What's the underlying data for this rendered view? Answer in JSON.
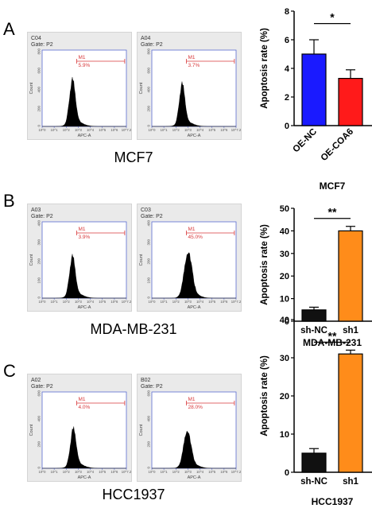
{
  "panels": [
    {
      "letter": "A",
      "cell_line": "MCF7",
      "histograms": [
        {
          "sample": "C04",
          "gate": "Gate: P2",
          "marker": "M1",
          "percent": "5.9%",
          "peak": 0.36,
          "spread": 0.035,
          "height": 0.62
        },
        {
          "sample": "A04",
          "gate": "Gate: P2",
          "marker": "M1",
          "percent": "3.7%",
          "peak": 0.36,
          "spread": 0.033,
          "height": 0.56
        }
      ],
      "hist_axis": {
        "ylabel": "Count",
        "xlabel": "APC-A",
        "yticks": [
          "0",
          "200",
          "400",
          "600",
          "800"
        ],
        "xticks": [
          "10^0",
          "10^1",
          "10^2",
          "10^3",
          "10^4",
          "10^5",
          "10^6",
          "10^7.2"
        ]
      }
    },
    {
      "letter": "B",
      "cell_line": "MDA-MB-231",
      "histograms": [
        {
          "sample": "A03",
          "gate": "Gate: P2",
          "marker": "M1",
          "percent": "3.9%",
          "peak": 0.36,
          "spread": 0.034,
          "height": 0.55
        },
        {
          "sample": "C03",
          "gate": "Gate: P2",
          "marker": "M1",
          "percent": "45.0%",
          "peak": 0.43,
          "spread": 0.045,
          "height": 0.62
        }
      ],
      "hist_axis": {
        "ylabel": "Count",
        "xlabel": "APC-A",
        "yticks": [
          "0",
          "100",
          "200",
          "300",
          "400"
        ],
        "xticks": [
          "10^0",
          "10^1",
          "10^2",
          "10^3",
          "10^4",
          "10^5",
          "10^6",
          "10^7.2"
        ]
      }
    },
    {
      "letter": "C",
      "cell_line": "HCC1937",
      "histograms": [
        {
          "sample": "A02",
          "gate": "Gate: P2",
          "marker": "M1",
          "percent": "4.0%",
          "peak": 0.37,
          "spread": 0.034,
          "height": 0.52
        },
        {
          "sample": "B02",
          "gate": "Gate: P2",
          "marker": "M1",
          "percent": "28.0%",
          "peak": 0.42,
          "spread": 0.042,
          "height": 0.5
        }
      ],
      "hist_axis": {
        "ylabel": "Count",
        "xlabel": "APC-A",
        "yticks": [
          "0",
          "200",
          "400",
          "600"
        ],
        "xticks": [
          "10^0",
          "10^1",
          "10^2",
          "10^3",
          "10^4",
          "10^5",
          "10^6",
          "10^7.2"
        ]
      }
    }
  ],
  "chart_data": [
    {
      "type": "bar",
      "title": "MCF7",
      "ylabel": "Apoptosis rate (%)",
      "categories": [
        "OE-NC",
        "OE-COA6"
      ],
      "values": [
        5.0,
        3.3
      ],
      "errors": [
        1.0,
        0.6
      ],
      "colors": [
        "#1a1aff",
        "#ff1a1a"
      ],
      "ylim": [
        0,
        8
      ],
      "yticks": [
        0,
        2,
        4,
        6,
        8
      ],
      "significance": "*",
      "rotated_labels": true
    },
    {
      "type": "bar",
      "title": "MDA-MB-231",
      "ylabel": "Apoptosis rate (%)",
      "categories": [
        "sh-NC",
        "sh1"
      ],
      "values": [
        5.0,
        40.0
      ],
      "errors": [
        1.2,
        2.0
      ],
      "colors": [
        "#111111",
        "#ff8c1a"
      ],
      "ylim": [
        0,
        50
      ],
      "yticks": [
        0,
        10,
        20,
        30,
        40,
        50
      ],
      "significance": "**",
      "rotated_labels": false
    },
    {
      "type": "bar",
      "title": "HCC1937",
      "ylabel": "Apoptosis rate (%)",
      "categories": [
        "sh-NC",
        "sh1"
      ],
      "values": [
        5.0,
        31.0
      ],
      "errors": [
        1.2,
        1.0
      ],
      "colors": [
        "#111111",
        "#ff8c1a"
      ],
      "ylim": [
        0,
        40
      ],
      "yticks": [
        0,
        10,
        20,
        30,
        40
      ],
      "significance": "**",
      "rotated_labels": false
    }
  ]
}
